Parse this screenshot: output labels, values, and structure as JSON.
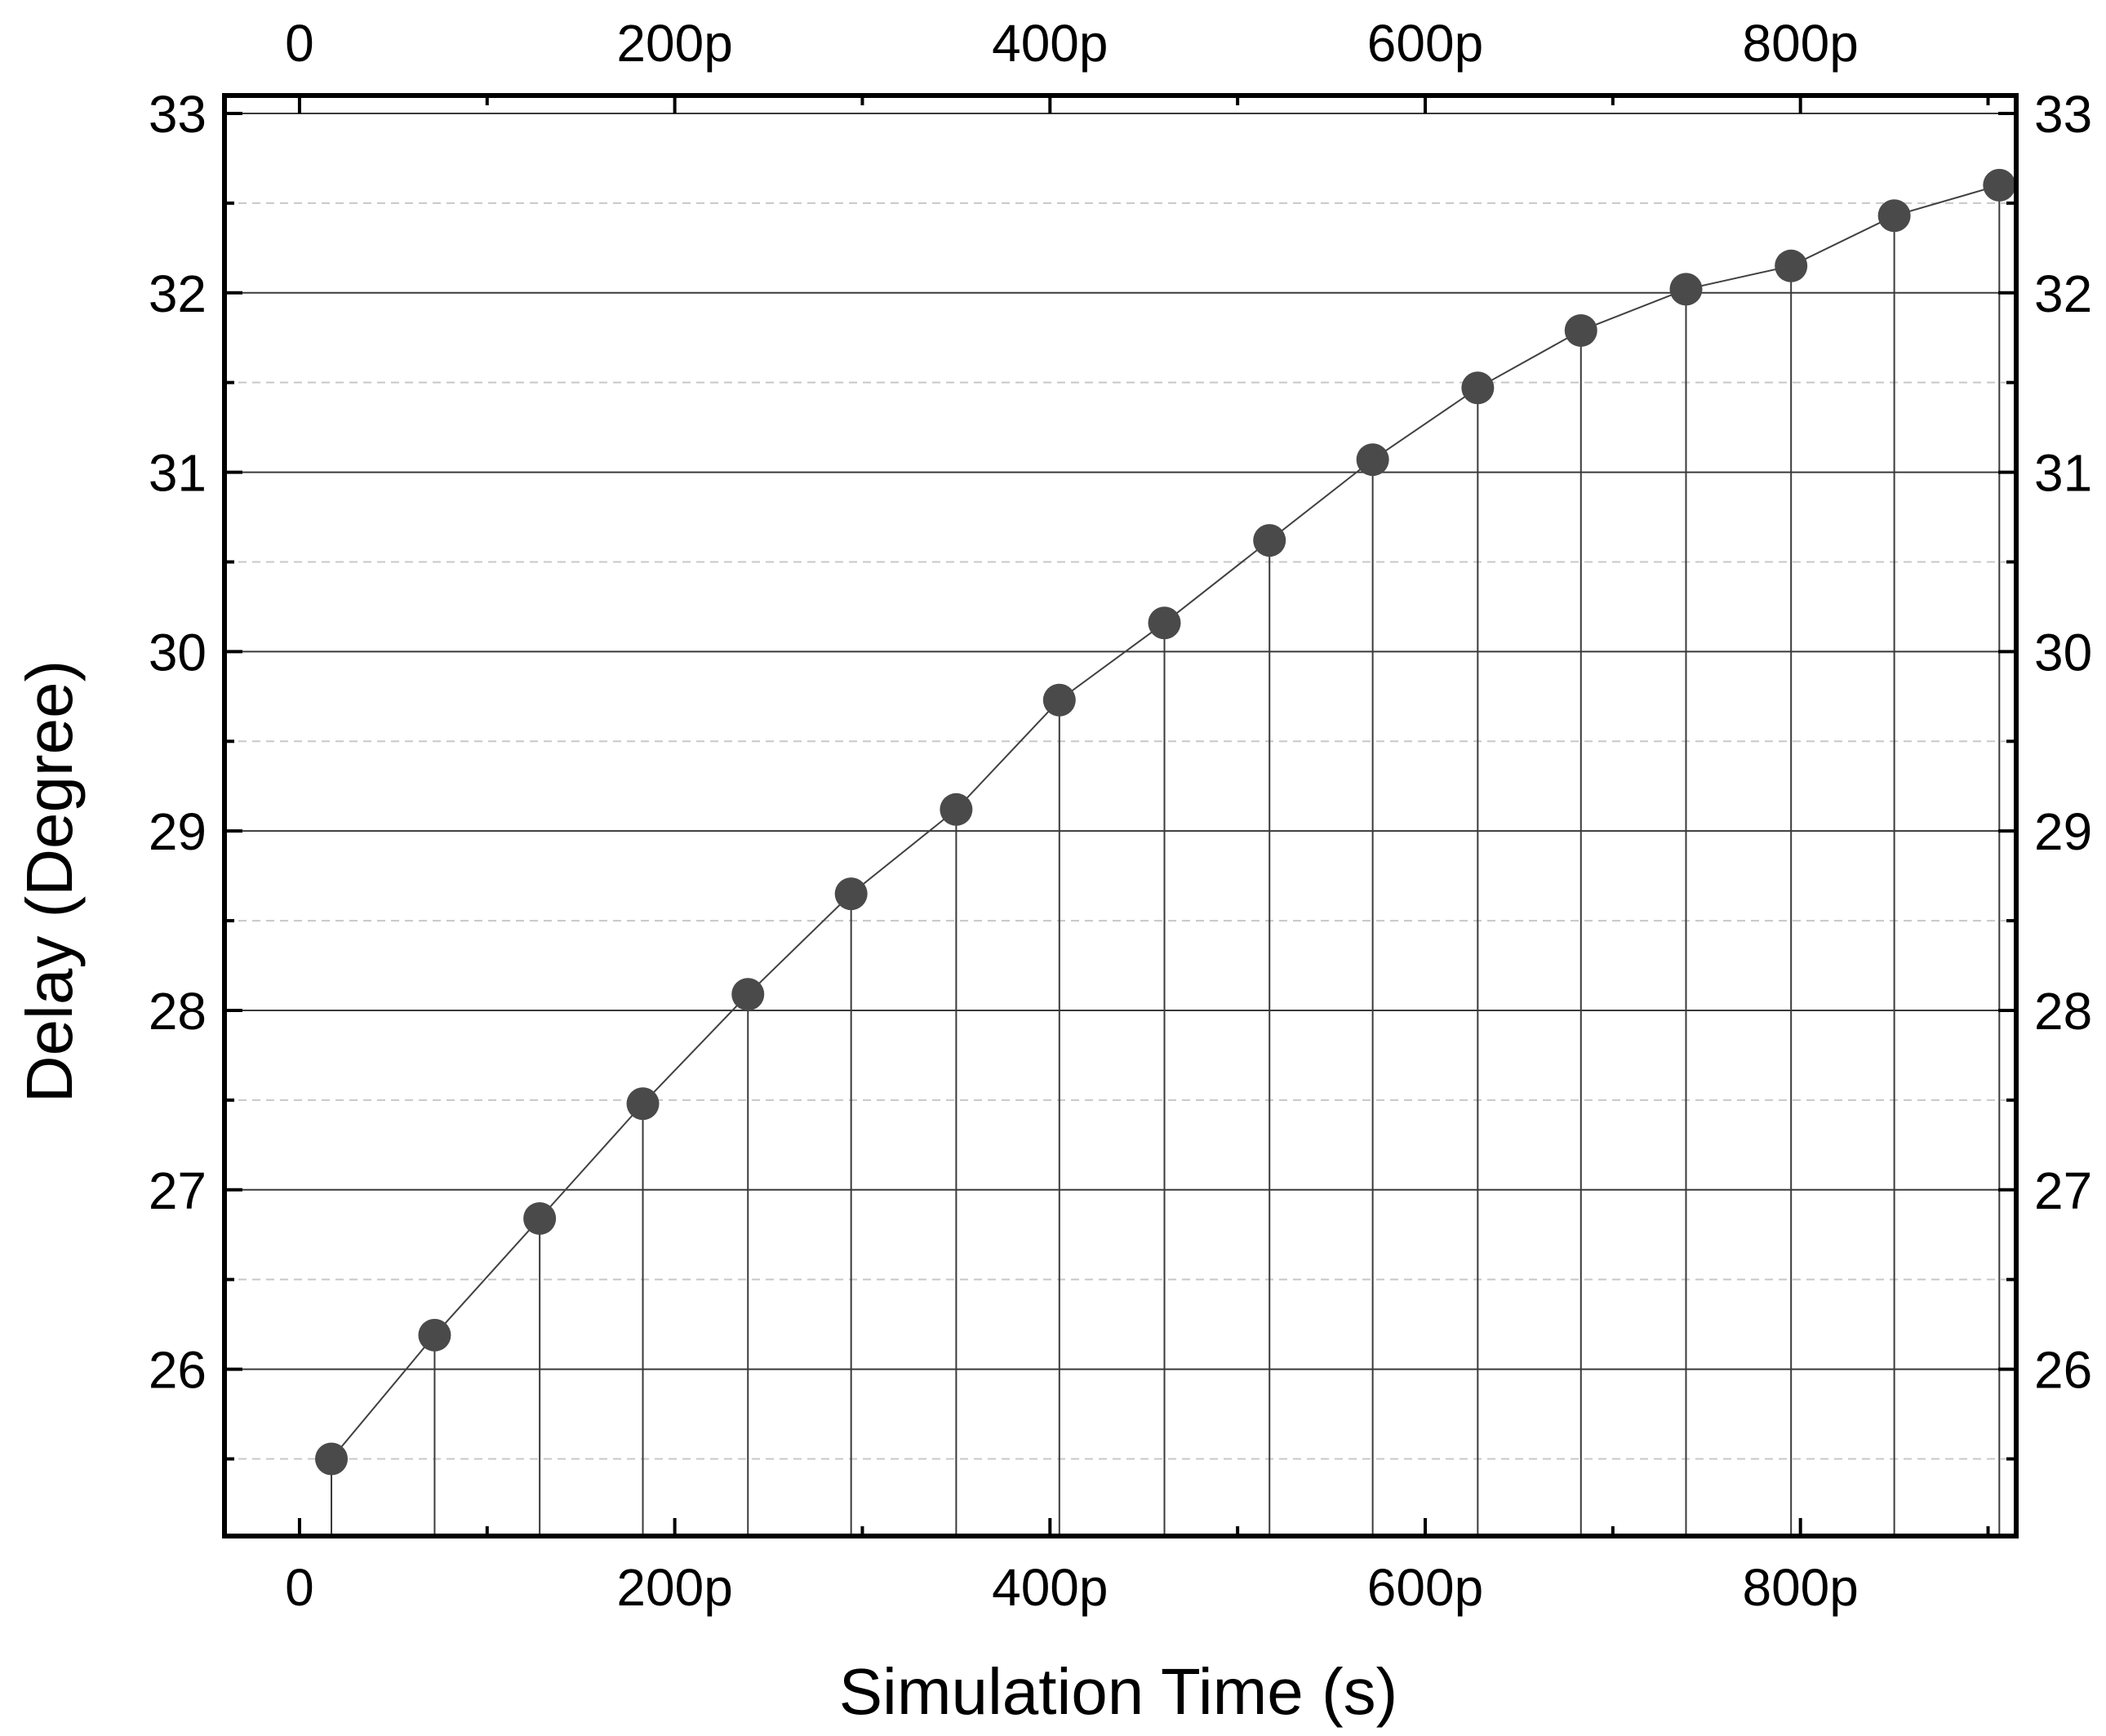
{
  "chart_data": {
    "type": "scatter",
    "title": "",
    "xlabel": "Simulation Time (s)",
    "ylabel": "Delay (Degree)",
    "xlim": [
      -40,
      915
    ],
    "ylim": [
      25.07,
      33.1
    ],
    "x_ticks": [
      {
        "value": 0,
        "label": "0"
      },
      {
        "value": 200,
        "label": "200p"
      },
      {
        "value": 400,
        "label": "400p"
      },
      {
        "value": 600,
        "label": "600p"
      },
      {
        "value": 800,
        "label": "800p"
      }
    ],
    "x_minor_ticks": [
      100,
      300,
      500,
      700,
      900
    ],
    "y_ticks": [
      {
        "value": 26,
        "label": "26"
      },
      {
        "value": 27,
        "label": "27"
      },
      {
        "value": 28,
        "label": "28"
      },
      {
        "value": 29,
        "label": "29"
      },
      {
        "value": 30,
        "label": "30"
      },
      {
        "value": 31,
        "label": "31"
      },
      {
        "value": 32,
        "label": "32"
      },
      {
        "value": 33,
        "label": "33"
      }
    ],
    "y_minor_ticks": [
      25.5,
      26.5,
      27.5,
      28.5,
      29.5,
      30.5,
      31.5,
      32.5
    ],
    "top_axis_mirrored": true,
    "right_axis_mirrored": true,
    "grid": {
      "major": "solid",
      "minor": "dashed"
    },
    "drop_lines": true,
    "series": [
      {
        "marker_color": "#4a4a4a",
        "line_color": "#404040",
        "x": [
          17,
          72,
          128,
          183,
          239,
          294,
          350,
          405,
          461,
          517,
          572,
          628,
          683,
          739,
          795,
          850,
          906
        ],
        "y": [
          25.5,
          26.19,
          26.84,
          27.48,
          28.09,
          28.65,
          29.12,
          29.73,
          30.16,
          30.62,
          31.07,
          31.47,
          31.79,
          32.02,
          32.15,
          32.43,
          32.6
        ]
      }
    ]
  }
}
